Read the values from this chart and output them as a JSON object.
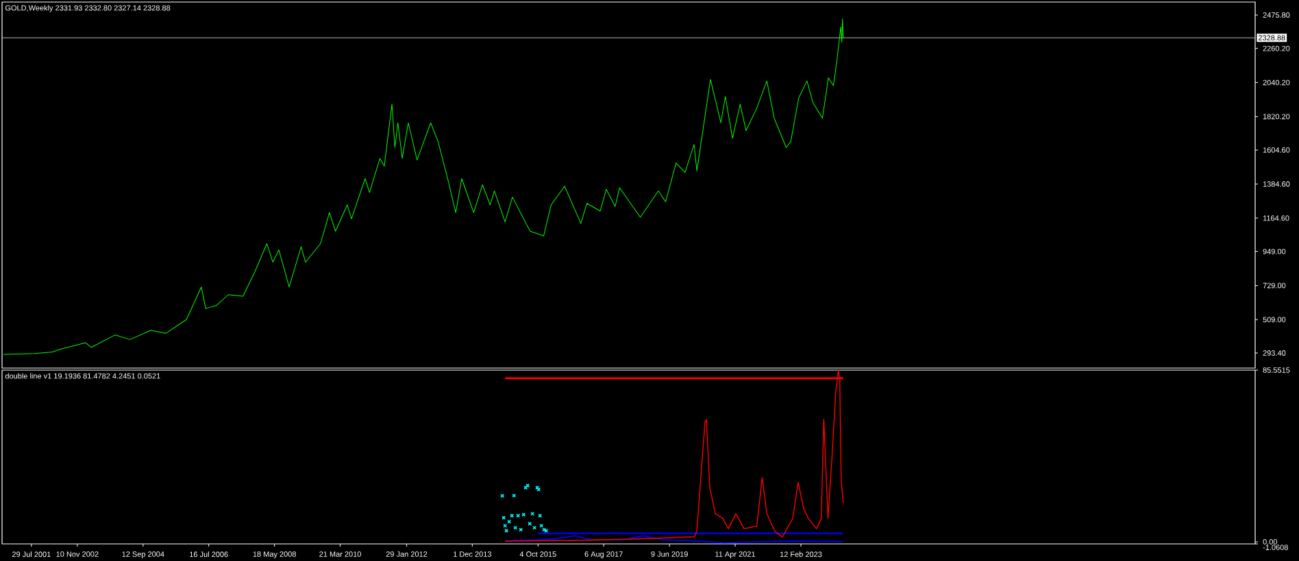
{
  "chart_data": [
    {
      "type": "line",
      "title": "GOLD,Weekly  2331.93 2332.80 2327.14 2328.88",
      "xlim": [
        "2000-10-01",
        "2035-11-01"
      ],
      "ylim": [
        196.2,
        2559.7
      ],
      "tick_labels": "y",
      "yticks": [
        {
          "value": 293.4,
          "label": "293.40"
        },
        {
          "value": 509,
          "label": "509.00"
        },
        {
          "value": 729,
          "label": "729.00"
        },
        {
          "value": 949,
          "label": "949.00"
        },
        {
          "value": 1164.6,
          "label": "1164.60"
        },
        {
          "value": 1384.6,
          "label": "1384.60"
        },
        {
          "value": 1604.6,
          "label": "1604.60"
        },
        {
          "value": 1820.2,
          "label": "1820.20"
        },
        {
          "value": 2040.2,
          "label": "2040.20"
        },
        {
          "value": 2260.2,
          "label": "2260.20"
        },
        {
          "value": 2475.8,
          "label": "2475.80"
        }
      ],
      "ref_lines": [
        {
          "axis": "y",
          "value": 2328.88,
          "label": "2328.88",
          "color": "#b0b8c0"
        }
      ],
      "series": [
        {
          "color": "#00ff00",
          "x": [
            "2000-10-15",
            "2001-09-01",
            "2002-03-01",
            "2002-06-01",
            "2003-02-01",
            "2003-04-01",
            "2003-12-01",
            "2004-05-01",
            "2004-12-01",
            "2005-05-01",
            "2005-12-01",
            "2006-05-01",
            "2006-06-15",
            "2006-10-01",
            "2007-02-01",
            "2007-07-01",
            "2007-11-01",
            "2008-03-01",
            "2008-05-01",
            "2008-07-01",
            "2008-10-15",
            "2009-02-15",
            "2009-04-01",
            "2009-09-01",
            "2009-12-01",
            "2010-02-01",
            "2010-06-01",
            "2010-07-15",
            "2010-12-01",
            "2011-01-15",
            "2011-05-01",
            "2011-06-15",
            "2011-09-01",
            "2011-10-01",
            "2011-11-01",
            "2011-12-15",
            "2012-02-15",
            "2012-05-15",
            "2012-10-01",
            "2012-12-15",
            "2013-04-01",
            "2013-06-15",
            "2013-08-15",
            "2013-12-15",
            "2014-03-15",
            "2014-06-01",
            "2014-07-15",
            "2014-11-01",
            "2015-01-15",
            "2015-07-15",
            "2015-12-01",
            "2016-02-15",
            "2016-07-01",
            "2016-12-15",
            "2017-02-15",
            "2017-07-01",
            "2017-09-01",
            "2017-12-01",
            "2018-01-15",
            "2018-08-15",
            "2019-02-15",
            "2019-05-01",
            "2019-08-15",
            "2019-11-15",
            "2020-02-15",
            "2020-03-15",
            "2020-08-01",
            "2020-11-15",
            "2021-01-01",
            "2021-03-15",
            "2021-06-01",
            "2021-08-01",
            "2021-11-15",
            "2022-03-01",
            "2022-05-15",
            "2022-09-15",
            "2022-11-01",
            "2023-01-20",
            "2023-04-15",
            "2023-06-15",
            "2023-09-20",
            "2023-11-20",
            "2024-01-10",
            "2024-02-15",
            "2024-03-25",
            "2024-04-05",
            "2024-04-12",
            "2024-04-20"
          ],
          "values": [
            285,
            290,
            300,
            320,
            360,
            330,
            410,
            380,
            440,
            420,
            510,
            720,
            580,
            600,
            670,
            660,
            820,
            1000,
            880,
            960,
            720,
            980,
            880,
            1000,
            1200,
            1080,
            1250,
            1160,
            1420,
            1330,
            1550,
            1500,
            1900,
            1620,
            1780,
            1550,
            1780,
            1540,
            1780,
            1660,
            1400,
            1200,
            1420,
            1200,
            1380,
            1250,
            1340,
            1140,
            1300,
            1080,
            1050,
            1250,
            1370,
            1130,
            1260,
            1210,
            1350,
            1240,
            1360,
            1170,
            1340,
            1270,
            1520,
            1460,
            1640,
            1470,
            2060,
            1780,
            1950,
            1680,
            1900,
            1730,
            1870,
            2050,
            1810,
            1620,
            1660,
            1940,
            2050,
            1910,
            1810,
            2070,
            2020,
            2180,
            2400,
            2300,
            2450,
            2329
          ]
        }
      ]
    },
    {
      "type": "line",
      "title": "double line v1 19.1936 81.4782 4.2451 0.0521",
      "xlim": [
        "2000-10-01",
        "2035-11-01"
      ],
      "ylim": [
        -1.0608,
        85.5515
      ],
      "xticks": [
        {
          "value": "2001-07-29",
          "label": "29 Jul 2001"
        },
        {
          "value": "2002-11-10",
          "label": "10 Nov 2002"
        },
        {
          "value": "2004-09-12",
          "label": "12 Sep 2004"
        },
        {
          "value": "2006-07-16",
          "label": "16 Jul 2006"
        },
        {
          "value": "2008-05-18",
          "label": "18 May 2008"
        },
        {
          "value": "2010-03-21",
          "label": "21 Mar 2010"
        },
        {
          "value": "2012-01-29",
          "label": "29 Jan 2012"
        },
        {
          "value": "2013-12-01",
          "label": "1 Dec 2013"
        },
        {
          "value": "2015-10-04",
          "label": "4 Oct 2015"
        },
        {
          "value": "2017-08-06",
          "label": "6 Aug 2017"
        },
        {
          "value": "2019-06-09",
          "label": "9 Jun 2019"
        },
        {
          "value": "2021-04-11",
          "label": "11 Apr 2021"
        },
        {
          "value": "2023-02-12",
          "label": "12 Feb 2023"
        }
      ],
      "yticks": [
        {
          "value": -1.0608,
          "label": "-1.0608"
        },
        {
          "value": 0,
          "label": "0.00"
        },
        85.5515
      ],
      "series": [
        {
          "color": "#ff0000",
          "x": [
            "2014-11-01",
            "2024-04-19"
          ],
          "values": [
            81.5,
            81.5
          ]
        },
        {
          "color": "#0000ff",
          "x": [
            "2015-10-01",
            "2024-04-19"
          ],
          "values": [
            4.2,
            4.2
          ]
        },
        {
          "color": "#0000ff",
          "x": [
            "2014-11-01",
            "2015-10-08",
            "2016-03-22",
            "2016-10-18",
            "2017-03-25",
            "2018-02-16",
            "2018-09-13",
            "2019-04-08",
            "2020-01-12",
            "2020-12-25",
            "2021-12-08",
            "2022-11-20",
            "2024-04-19"
          ],
          "values": [
            0.5,
            1.0,
            1.5,
            3.0,
            1.0,
            1.0,
            3.0,
            1.0,
            0.5,
            -0.5,
            0,
            0.3,
            0.1
          ]
        },
        {
          "color": "#ff0000",
          "x": [
            "2014-11-01",
            "2015-10-08",
            "2017-03-25",
            "2018-09-06",
            "2020-02-16",
            "2020-03-14",
            "2020-06-06",
            "2020-06-20",
            "2020-07-25",
            "2020-09-20",
            "2020-12-06",
            "2021-01-31",
            "2021-04-18",
            "2021-07-11",
            "2021-11-18",
            "2022-01-12",
            "2022-03-01",
            "2022-05-23",
            "2022-08-07",
            "2022-11-20",
            "2023-01-15",
            "2023-03-11",
            "2023-04-30",
            "2023-07-20",
            "2023-09-08",
            "2023-10-04",
            "2023-11-16",
            "2023-12-28",
            "2024-02-02",
            "2024-03-01",
            "2024-03-15",
            "2024-03-29",
            "2024-04-19"
          ],
          "values": [
            0.3,
            0.5,
            0.8,
            1.5,
            2.5,
            5.1,
            59.7,
            61,
            27,
            14,
            11.6,
            6.5,
            14,
            6.5,
            7.8,
            32,
            14,
            5.1,
            2.4,
            11.6,
            29.7,
            16.7,
            11.6,
            6.5,
            11.6,
            61,
            11.6,
            43,
            74,
            85.5,
            80,
            32,
            19.2
          ]
        },
        {
          "type": "scatter",
          "marker": "cross",
          "color": "#00ffff",
          "x": [
            "2014-10-04",
            "2014-10-18",
            "2014-11-01",
            "2014-11-15",
            "2014-12-13",
            "2015-01-10",
            "2015-01-31",
            "2015-02-14",
            "2015-03-14",
            "2015-04-11",
            "2015-05-09",
            "2015-05-30",
            "2015-06-20",
            "2015-07-11",
            "2015-08-08",
            "2015-08-29",
            "2015-09-26",
            "2015-10-10",
            "2015-10-24",
            "2015-11-07",
            "2015-12-05",
            "2015-12-26"
          ],
          "values": [
            22.9,
            12,
            8,
            5.5,
            10,
            13,
            23,
            7,
            13,
            6,
            13.5,
            27,
            28,
            9,
            14,
            7,
            27,
            26,
            13,
            8,
            6,
            5.5
          ]
        }
      ]
    }
  ]
}
